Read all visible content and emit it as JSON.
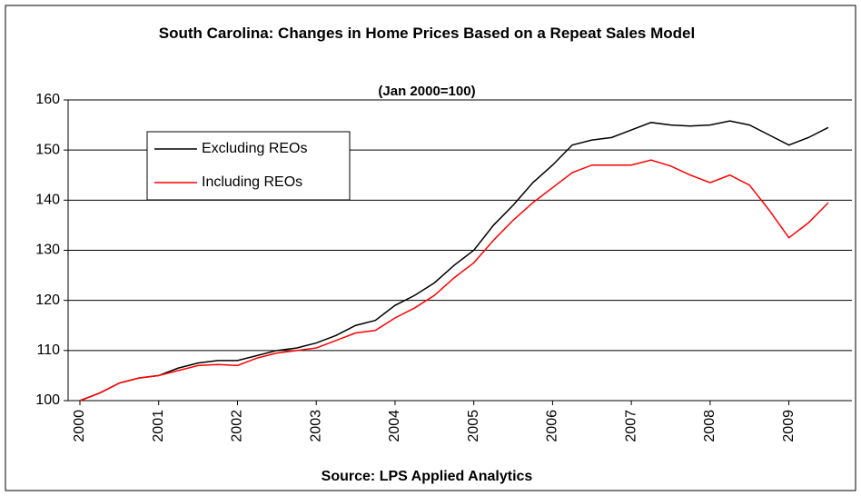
{
  "chart_data": {
    "type": "line",
    "title": "South Carolina: Changes in Home Prices Based on a Repeat Sales Model",
    "subtitle": "(Jan 2000=100)",
    "xlabel": "Source: LPS Applied Analytics",
    "x": [
      2000,
      2000.25,
      2000.5,
      2000.75,
      2001,
      2001.25,
      2001.5,
      2001.75,
      2002,
      2002.25,
      2002.5,
      2002.75,
      2003,
      2003.25,
      2003.5,
      2003.75,
      2004,
      2004.25,
      2004.5,
      2004.75,
      2005,
      2005.25,
      2005.5,
      2005.75,
      2006,
      2006.25,
      2006.5,
      2006.75,
      2007,
      2007.25,
      2007.5,
      2007.75,
      2008,
      2008.25,
      2008.5,
      2008.75,
      2009,
      2009.25,
      2009.5
    ],
    "series": [
      {
        "name": "Excluding REOs",
        "color": "#000000",
        "values": [
          100,
          101.5,
          103.5,
          104.5,
          105,
          106.5,
          107.5,
          108,
          108,
          109,
          110,
          110.5,
          111.5,
          113,
          115,
          116,
          119,
          121,
          123.5,
          127,
          130,
          135,
          139,
          143.5,
          147,
          151,
          152,
          152.5,
          154,
          155.5,
          155,
          154.8,
          155,
          155.8,
          155,
          153,
          151,
          152.5,
          154.5
        ]
      },
      {
        "name": "Including REOs",
        "color": "#ff0000",
        "values": [
          100,
          101.5,
          103.5,
          104.5,
          105,
          106,
          107,
          107.2,
          107,
          108.5,
          109.5,
          110,
          110.5,
          112,
          113.5,
          114,
          116.5,
          118.5,
          121,
          124.5,
          127.5,
          132,
          136,
          139.5,
          142.5,
          145.5,
          147,
          147,
          147,
          148,
          146.8,
          145,
          143.5,
          145,
          143,
          138,
          132.5,
          135.5,
          139.5
        ]
      }
    ],
    "xlim": [
      1999.85,
      2009.8
    ],
    "xticks": [
      2000,
      2001,
      2002,
      2003,
      2004,
      2005,
      2006,
      2007,
      2008,
      2009
    ],
    "ylim": [
      100,
      160
    ],
    "yticks": [
      100,
      110,
      120,
      130,
      140,
      150,
      160
    ],
    "grid": true,
    "legend": "upper left"
  }
}
